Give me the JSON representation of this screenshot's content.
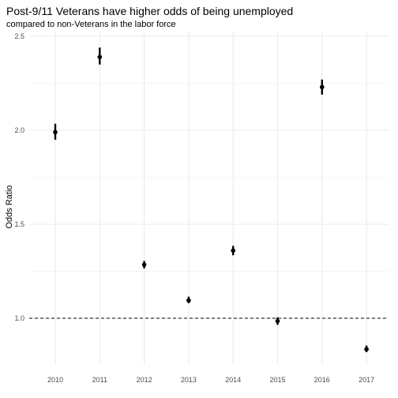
{
  "chart_data": {
    "type": "scatter",
    "title": "Post-9/11 Veterans have higher odds of being unemployed",
    "subtitle": "compared to non-Veterans in the labor force",
    "xlabel": "",
    "ylabel": "Odds Ratio",
    "categories": [
      "2010",
      "2011",
      "2012",
      "2013",
      "2014",
      "2015",
      "2016",
      "2017"
    ],
    "series": [
      {
        "values": [
          1.99,
          2.39,
          1.285,
          1.095,
          1.36,
          0.985,
          2.23,
          0.835
        ],
        "lower": [
          1.95,
          2.35,
          1.265,
          1.08,
          1.335,
          0.965,
          2.19,
          0.82
        ],
        "upper": [
          2.035,
          2.44,
          1.305,
          1.115,
          1.385,
          1.005,
          2.27,
          0.855
        ]
      }
    ],
    "yticks": [
      1.0,
      1.5,
      2.0,
      2.5
    ],
    "ytick_labels": [
      "1.0",
      "1.5",
      "2.0",
      "2.5"
    ],
    "ylim": [
      0.77,
      2.55
    ],
    "reference_line": 1.0,
    "grid": true,
    "legend": "none",
    "colors": {
      "point": "#000000",
      "grid": "#ebebeb",
      "reference": "#000000"
    }
  }
}
